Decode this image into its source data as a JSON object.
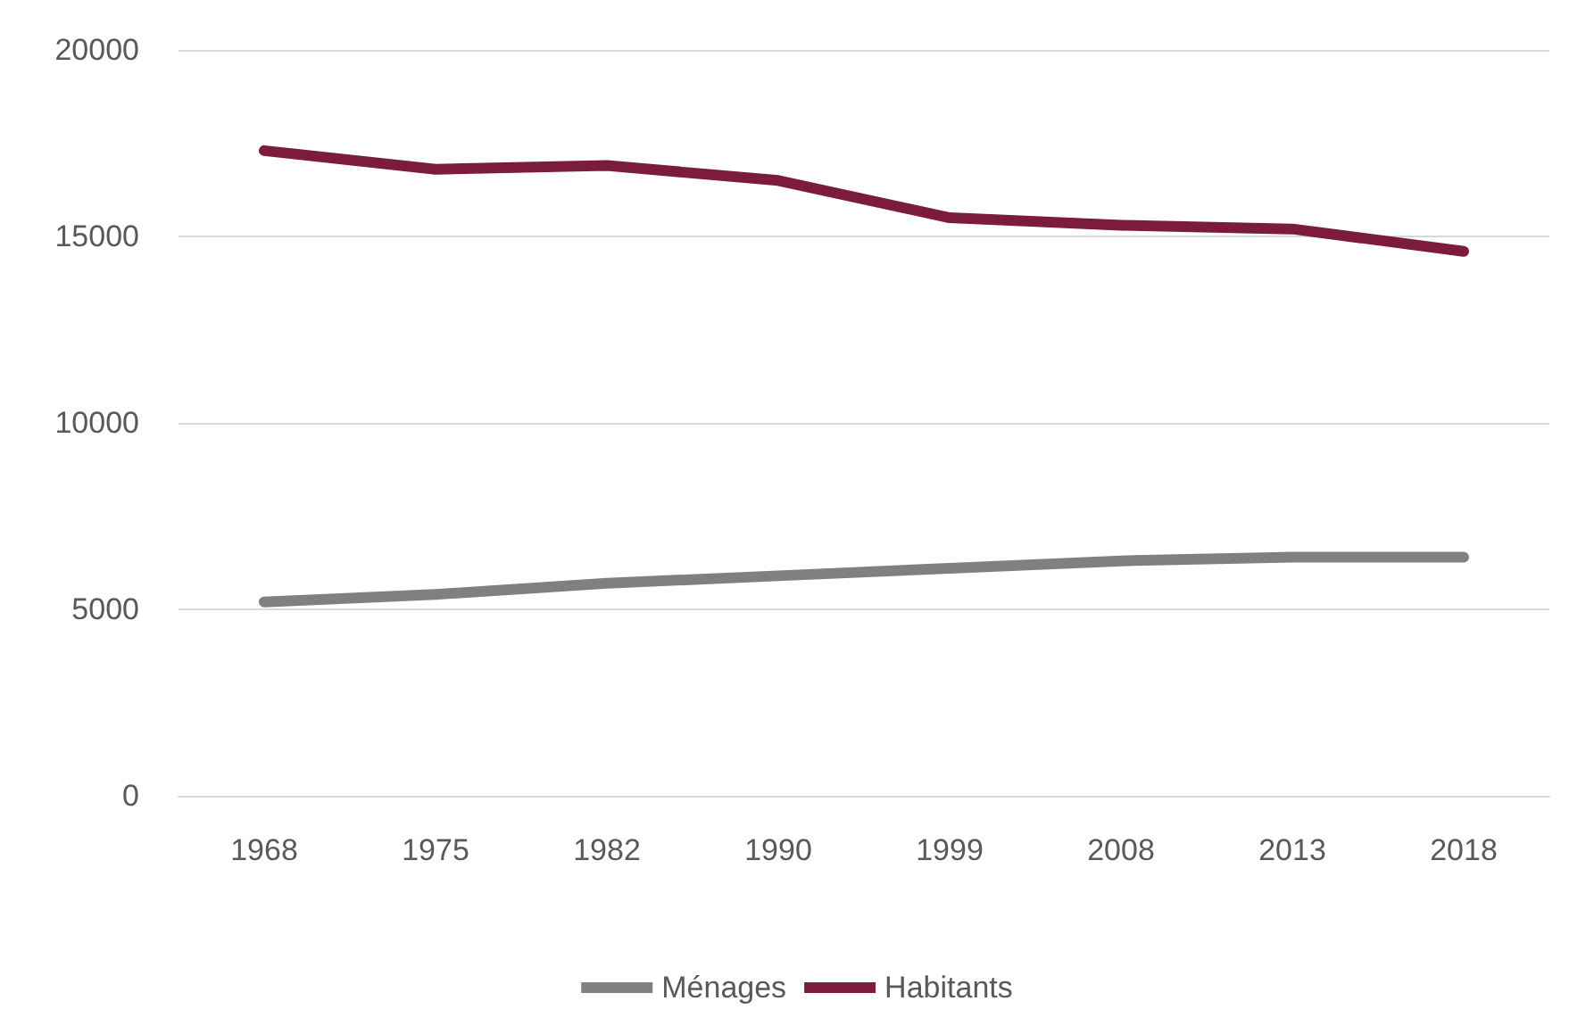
{
  "chart_data": {
    "type": "line",
    "categories": [
      "1968",
      "1975",
      "1982",
      "1990",
      "1999",
      "2008",
      "2013",
      "2018"
    ],
    "series": [
      {
        "name": "Ménages",
        "color": "#808080",
        "values": [
          5200,
          5400,
          5700,
          5900,
          6100,
          6300,
          6400,
          6400
        ]
      },
      {
        "name": "Habitants",
        "color": "#7b1c3a",
        "values": [
          17300,
          16800,
          16900,
          16500,
          15500,
          15300,
          15200,
          14600
        ]
      }
    ],
    "ylim": [
      0,
      20000
    ],
    "yticks": [
      0,
      5000,
      10000,
      15000,
      20000
    ],
    "grid": "y",
    "legend": "bottom",
    "marker": "none",
    "line_style": "solid"
  }
}
